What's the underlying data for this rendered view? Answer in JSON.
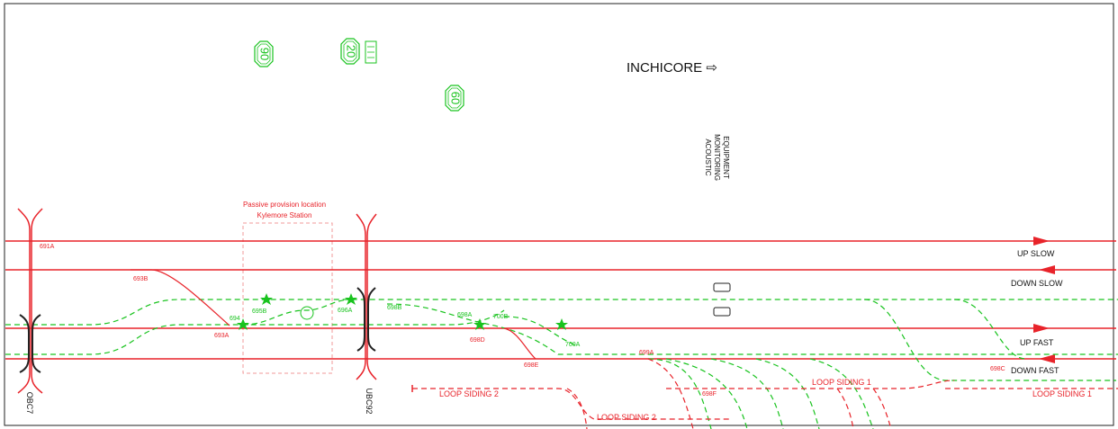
{
  "header": {
    "destination": "INCHICORE ⇨"
  },
  "speed_signs": [
    {
      "value": "90"
    },
    {
      "value": "20"
    },
    {
      "value": "60"
    }
  ],
  "equipment_label": [
    "ACOUSTIC",
    "MONITORING",
    "EQUIPMENT"
  ],
  "provision_note": {
    "line1": "Passive provision location",
    "line2": "Kylemore Station"
  },
  "lines": {
    "up_slow": "UP SLOW",
    "down_slow": "DOWN SLOW",
    "up_fast": "UP FAST",
    "down_fast": "DOWN FAST"
  },
  "sidings": {
    "loop_siding_2_left": "LOOP SIDING 2",
    "loop_siding_2_bottom": "LOOP SIDING 2",
    "loop_siding_1_mid": "LOOP SIDING 1",
    "loop_siding_1_right": "LOOP SIDING 1"
  },
  "bridges": [
    {
      "label": "OBC7"
    },
    {
      "label": "UBC92"
    }
  ],
  "point_labels": {
    "p691a": "691A",
    "p693b": "693B",
    "p693a": "693A",
    "p694": "694",
    "p695b": "695B",
    "p696a": "696A",
    "p698b": "698B",
    "p698a": "698A",
    "p700b": "700B",
    "p698d": "698D",
    "p698e": "698E",
    "p700a": "700A",
    "p699a": "699A",
    "p698f": "698F",
    "p698c": "698C"
  },
  "colors": {
    "red_track": "#e8232a",
    "green_track": "#19c31e",
    "text": "#111111"
  }
}
